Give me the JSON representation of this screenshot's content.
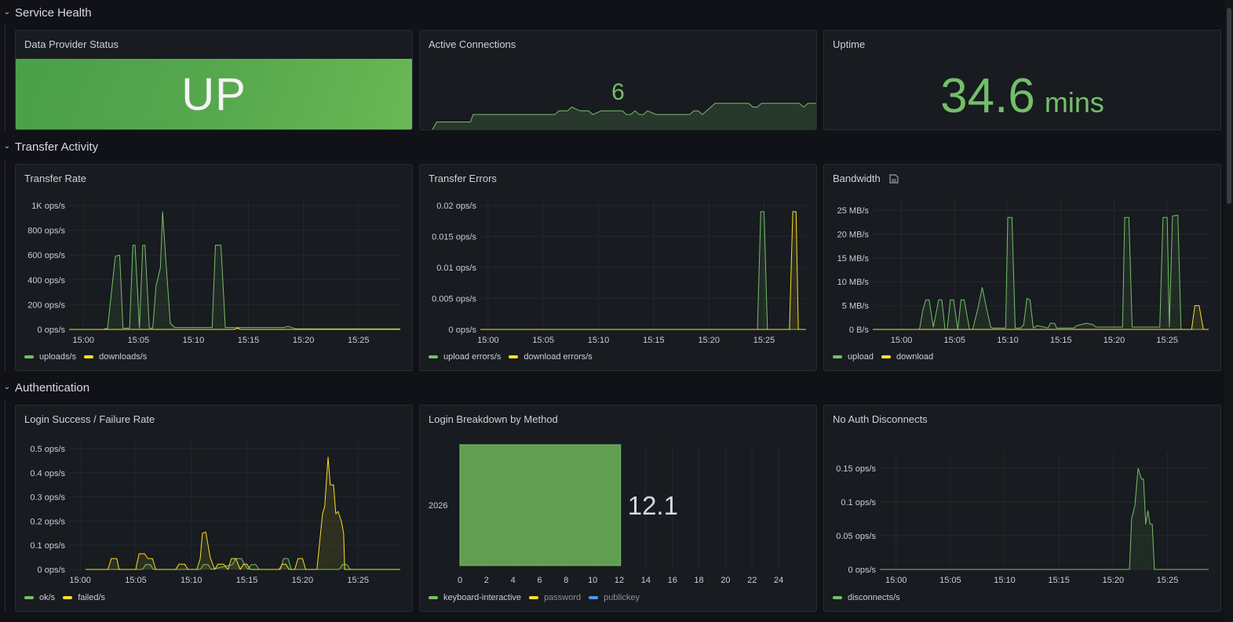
{
  "colors": {
    "green": "#73bf69",
    "yellow": "#fade2a",
    "blue": "#5794f2",
    "grid": "#25272d",
    "axis_text": "#ccccdc"
  },
  "rows": [
    {
      "title": "Service Health",
      "collapse_icon": "chevron-down-icon"
    },
    {
      "title": "Transfer Activity",
      "collapse_icon": "chevron-down-icon"
    },
    {
      "title": "Authentication",
      "collapse_icon": "chevron-down-icon"
    }
  ],
  "panels": {
    "provider_status": {
      "title": "Data Provider Status",
      "value": "UP"
    },
    "active_connections": {
      "title": "Active Connections",
      "value": "6"
    },
    "uptime": {
      "title": "Uptime",
      "value": "34.6",
      "unit": "mins"
    },
    "transfer_rate": {
      "title": "Transfer Rate",
      "legend": [
        "uploads/s",
        "downloads/s"
      ]
    },
    "transfer_errors": {
      "title": "Transfer Errors",
      "legend": [
        "upload errors/s",
        "download errors/s"
      ]
    },
    "bandwidth": {
      "title": "Bandwidth",
      "info_icon": "panel-description-icon",
      "legend": [
        "upload",
        "download"
      ]
    },
    "login_rate": {
      "title": "Login Success / Failure Rate",
      "legend": [
        "ok/s",
        "failed/s"
      ]
    },
    "login_breakdown": {
      "title": "Login Breakdown by Method",
      "value_label": "12.1",
      "legend": [
        "keyboard-interactive",
        "password",
        "publickey"
      ]
    },
    "no_auth": {
      "title": "No Auth Disconnects",
      "legend": [
        "disconnects/s"
      ]
    }
  },
  "chart_data": [
    {
      "id": "active_connections",
      "type": "area",
      "title": "Active Connections (sparkline)",
      "x_minutes": [
        1.5,
        2,
        6,
        6.3,
        16,
        16.5,
        17.5,
        18,
        19,
        20,
        20.5,
        21.5,
        24,
        24.5,
        25,
        25.5,
        26,
        26.5,
        27,
        28,
        28.5,
        32,
        32.5,
        33,
        33.5,
        35,
        35.5,
        39,
        39.5,
        40,
        40.5,
        45,
        45.5,
        46,
        46.5,
        47
      ],
      "y": [
        0,
        1,
        1,
        2,
        2,
        2.5,
        2.5,
        3,
        2.5,
        2.5,
        2,
        2.5,
        2.5,
        2,
        2,
        2.5,
        2,
        2,
        2.5,
        2,
        2,
        2,
        2.5,
        2.5,
        2,
        3.5,
        3.5,
        3.5,
        3,
        3,
        3.5,
        3.5,
        3,
        3.5,
        3.5,
        3.5
      ],
      "ylim": [
        0,
        8
      ]
    },
    {
      "id": "transfer_rate",
      "type": "line",
      "title": "Transfer Rate",
      "x_ticks": [
        "15:00",
        "15:05",
        "15:10",
        "15:15",
        "15:20",
        "15:25"
      ],
      "y_ticks": [
        "0 ops/s",
        "200 ops/s",
        "400 ops/s",
        "600 ops/s",
        "800 ops/s",
        "1K ops/s"
      ],
      "ylim": [
        0,
        1000
      ],
      "xlim_minutes": [
        -1.3,
        28.8
      ],
      "series": [
        {
          "name": "uploads/s",
          "color": "#73bf69",
          "x": [
            -1.3,
            1.8,
            2.2,
            2.9,
            3.3,
            3.6,
            4.2,
            4.5,
            4.7,
            5.1,
            5.4,
            5.6,
            6.0,
            6.3,
            6.6,
            7.0,
            7.2,
            7.5,
            7.9,
            8.3,
            8.5,
            11.7,
            12.0,
            12.5,
            12.9,
            15.0,
            18.2,
            18.6,
            19.3,
            28.8
          ],
          "y": [
            0,
            0,
            10,
            590,
            600,
            10,
            10,
            680,
            680,
            10,
            680,
            680,
            10,
            10,
            350,
            500,
            950,
            550,
            50,
            15,
            15,
            15,
            680,
            680,
            15,
            15,
            15,
            25,
            5,
            5
          ]
        },
        {
          "name": "downloads/s",
          "color": "#fade2a",
          "x": [
            -1.3,
            13.7,
            14.0,
            14.3,
            28.8
          ],
          "y": [
            0,
            0,
            10,
            0,
            0
          ]
        }
      ]
    },
    {
      "id": "transfer_errors",
      "type": "line",
      "title": "Transfer Errors",
      "x_ticks": [
        "15:00",
        "15:05",
        "15:10",
        "15:15",
        "15:20",
        "15:25"
      ],
      "y_ticks": [
        "0 ops/s",
        "0.005 ops/s",
        "0.01 ops/s",
        "0.015 ops/s",
        "0.02 ops/s"
      ],
      "ylim": [
        0,
        0.02
      ],
      "xlim_minutes": [
        -0.7,
        28.8
      ],
      "series": [
        {
          "name": "upload errors/s",
          "color": "#73bf69",
          "x": [
            -0.7,
            24.4,
            24.7,
            25.0,
            25.3,
            28.8
          ],
          "y": [
            0,
            0,
            0.019,
            0.019,
            0,
            0
          ]
        },
        {
          "name": "download errors/s",
          "color": "#fade2a",
          "x": [
            -0.7,
            27.3,
            27.6,
            27.9,
            28.1,
            28.8
          ],
          "y": [
            0,
            0,
            0.019,
            0.019,
            0,
            0
          ]
        }
      ]
    },
    {
      "id": "bandwidth",
      "type": "line",
      "title": "Bandwidth",
      "x_ticks": [
        "15:00",
        "15:05",
        "15:10",
        "15:15",
        "15:20",
        "15:25"
      ],
      "y_ticks": [
        "0 B/s",
        "5 MB/s",
        "10 MB/s",
        "15 MB/s",
        "20 MB/s",
        "25 MB/s"
      ],
      "ylim": [
        0,
        26
      ],
      "xlim_minutes": [
        -2.7,
        28.9
      ],
      "series": [
        {
          "name": "upload",
          "color": "#73bf69",
          "x": [
            -2.7,
            1.7,
            2.0,
            2.3,
            2.6,
            3.0,
            3.5,
            3.8,
            4.1,
            4.3,
            4.6,
            4.9,
            5.3,
            5.6,
            5.9,
            6.4,
            6.7,
            7.2,
            7.6,
            8.0,
            8.4,
            8.6,
            9.0,
            9.8,
            10.0,
            10.4,
            10.7,
            11.2,
            11.5,
            11.8,
            12.1,
            12.4,
            12.8,
            13.8,
            14.0,
            14.4,
            14.6,
            16.2,
            16.5,
            17.4,
            18.0,
            18.3,
            20.8,
            21.0,
            21.4,
            21.7,
            24.3,
            24.6,
            25.0,
            25.2,
            25.5,
            26.0,
            26.3,
            27.3,
            28.9
          ],
          "y": [
            0,
            0,
            4,
            6.2,
            6.2,
            0.5,
            6.2,
            6.2,
            0,
            0,
            6.2,
            6.2,
            0,
            6.2,
            6.2,
            0,
            0,
            4.5,
            8.8,
            4.5,
            0.5,
            0.3,
            0.3,
            0.3,
            23.5,
            23.5,
            0.3,
            0.3,
            1,
            6.5,
            6.2,
            0.3,
            0.8,
            0.3,
            1.3,
            1.3,
            0.3,
            0.3,
            0.8,
            1.3,
            1.0,
            0.5,
            0.5,
            23.5,
            23.5,
            0.5,
            0.5,
            23.5,
            23.5,
            0.5,
            23.8,
            24,
            0,
            0,
            0
          ]
        },
        {
          "name": "download",
          "color": "#fade2a",
          "x": [
            -2.7,
            27.3,
            27.6,
            28.0,
            28.4,
            28.9
          ],
          "y": [
            0,
            0,
            5,
            5,
            0,
            0
          ]
        }
      ]
    },
    {
      "id": "login_rate",
      "type": "line",
      "title": "Login Success / Failure Rate",
      "x_ticks": [
        "15:00",
        "15:05",
        "15:10",
        "15:15",
        "15:20",
        "15:25"
      ],
      "y_ticks": [
        "0 ops/s",
        "0.1 ops/s",
        "0.2 ops/s",
        "0.3 ops/s",
        "0.4 ops/s",
        "0.5 ops/s"
      ],
      "ylim": [
        0,
        0.5
      ],
      "xlim_minutes": [
        -1.0,
        28.8
      ],
      "series": [
        {
          "name": "ok/s",
          "color": "#73bf69",
          "x": [
            0.5,
            5.6,
            5.9,
            6.3,
            6.6,
            10.8,
            11.1,
            11.5,
            11.8,
            13.7,
            14.0,
            14.5,
            14.8,
            15.1,
            15.4,
            15.8,
            16.1,
            18.0,
            18.3,
            18.7,
            19.0,
            23.3,
            23.6,
            24.0,
            24.3,
            28.8
          ],
          "y": [
            0,
            0,
            0.02,
            0.02,
            0,
            0,
            0.02,
            0.02,
            0,
            0.02,
            0.045,
            0.045,
            0.02,
            0,
            0.02,
            0.02,
            0,
            0,
            0.045,
            0.045,
            0,
            0,
            0.02,
            0.02,
            0,
            0
          ]
        },
        {
          "name": "failed/s",
          "color": "#fade2a",
          "x": [
            0.5,
            2.5,
            2.8,
            3.3,
            3.5,
            5.0,
            5.3,
            5.8,
            6.1,
            6.5,
            6.8,
            8.6,
            8.9,
            9.4,
            9.7,
            10.5,
            10.8,
            11.0,
            11.3,
            11.7,
            12.1,
            12.4,
            12.9,
            13.3,
            13.6,
            14.0,
            14.4,
            14.7,
            15.0,
            15.3,
            15.8,
            16.1,
            17.9,
            18.2,
            18.5,
            18.8,
            19.3,
            19.6,
            20.0,
            20.3,
            21.3,
            21.8,
            22.0,
            22.3,
            22.5,
            22.8,
            23.0,
            23.2,
            23.5,
            23.7,
            23.8,
            28.8
          ],
          "y": [
            0,
            0,
            0.045,
            0.045,
            0,
            0,
            0.065,
            0.065,
            0.045,
            0.045,
            0,
            0,
            0.022,
            0.022,
            0,
            0,
            0.045,
            0.15,
            0.155,
            0.05,
            0,
            0.022,
            0.022,
            0,
            0.045,
            0.045,
            0,
            0.022,
            0.022,
            0,
            0,
            0,
            0,
            0.022,
            0.022,
            0,
            0,
            0.045,
            0.045,
            0,
            0,
            0.23,
            0.26,
            0.465,
            0.35,
            0.35,
            0.23,
            0.24,
            0.2,
            0.15,
            0,
            0
          ]
        }
      ]
    },
    {
      "id": "login_breakdown",
      "type": "bar",
      "title": "Login Breakdown by Method",
      "orientation": "horizontal",
      "categories": [
        "2026"
      ],
      "series": [
        {
          "name": "keyboard-interactive",
          "values": [
            12.1
          ],
          "color": "#73bf69"
        }
      ],
      "x_ticks": [
        0,
        2,
        4,
        6,
        8,
        10,
        12,
        14,
        16,
        18,
        20,
        22,
        24
      ],
      "xlim": [
        0,
        25
      ]
    },
    {
      "id": "no_auth",
      "type": "line",
      "title": "No Auth Disconnects",
      "x_ticks": [
        "15:00",
        "15:05",
        "15:10",
        "15:15",
        "15:20",
        "15:25"
      ],
      "y_ticks": [
        "0 ops/s",
        "0.05 ops/s",
        "0.1 ops/s",
        "0.15 ops/s"
      ],
      "ylim": [
        0,
        0.165
      ],
      "xlim_minutes": [
        -1.5,
        28.8
      ],
      "series": [
        {
          "name": "disconnects/s",
          "color": "#73bf69",
          "x": [
            -1.5,
            21.5,
            21.7,
            22.0,
            22.3,
            22.6,
            22.8,
            23.0,
            23.2,
            23.4,
            23.6,
            23.8,
            28.8
          ],
          "y": [
            0,
            0,
            0.075,
            0.095,
            0.15,
            0.134,
            0.134,
            0.067,
            0.087,
            0.067,
            0.067,
            0,
            0
          ]
        }
      ]
    }
  ]
}
